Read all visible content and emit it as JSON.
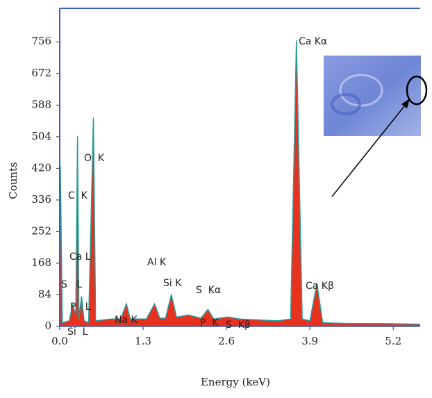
{
  "chart_data": {
    "type": "area",
    "x_label": "Energy (keV)",
    "y_label": "Counts",
    "xlim": [
      0,
      5.62
    ],
    "ylim": [
      0,
      845
    ],
    "xticks": [
      {
        "value": 0,
        "label": "0.0"
      },
      1.3,
      2.6,
      3.9,
      5.2
    ],
    "yticks": [
      0,
      84,
      168,
      252,
      336,
      420,
      504,
      588,
      672,
      756
    ],
    "series": [
      {
        "color": "#e8321e",
        "x": [
          0,
          0.01,
          0.04,
          0.15,
          0.2,
          0.25,
          0.277,
          0.3,
          0.34,
          0.38,
          0.45,
          0.525,
          0.56,
          0.8,
          0.95,
          1.04,
          1.1,
          1.35,
          1.48,
          1.56,
          1.65,
          1.74,
          1.82,
          2.01,
          2.2,
          2.31,
          2.4,
          2.62,
          2.8,
          3.4,
          3.6,
          3.69,
          3.78,
          3.9,
          4.01,
          4.1,
          4.5,
          5.0,
          5.62
        ],
        "values": [
          0,
          425,
          10,
          15,
          60,
          30,
          505,
          20,
          80,
          15,
          10,
          555,
          15,
          20,
          20,
          60,
          20,
          20,
          60,
          22,
          22,
          85,
          25,
          30,
          22,
          45,
          20,
          25,
          20,
          15,
          20,
          760,
          20,
          15,
          115,
          10,
          8,
          8,
          6
        ]
      }
    ],
    "annotations": [
      "Ca Kα",
      "Ca Kβ",
      "O  K",
      "C  K",
      "Ca L",
      "S   L",
      "P   L",
      "Si  L",
      "Al K",
      "Si K",
      "S  Kα",
      "Na K",
      "P  K",
      "S  Kβ"
    ]
  }
}
